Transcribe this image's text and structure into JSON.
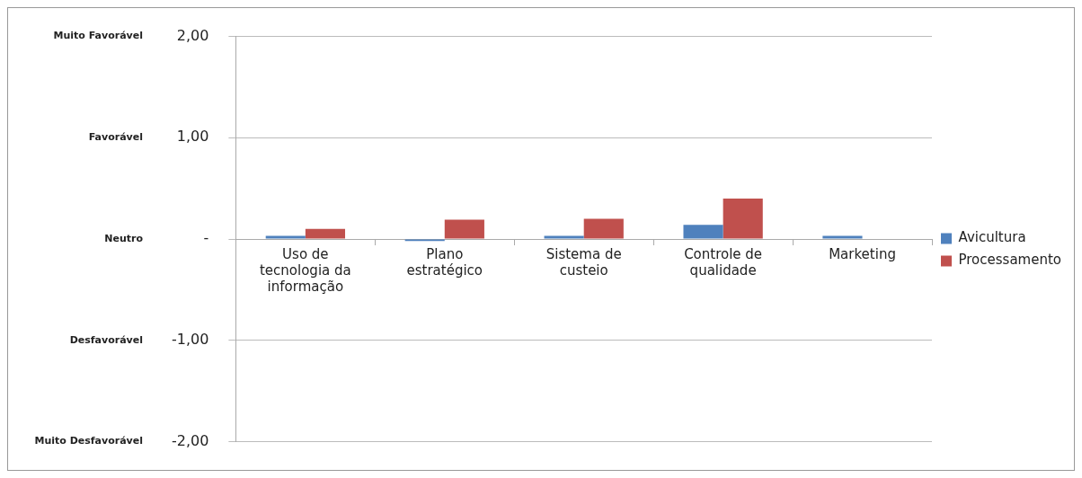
{
  "chart_data": {
    "type": "bar",
    "categories": [
      "Uso de tecnologia da informação",
      "Plano estratégico",
      "Sistema de custeio",
      "Controle de qualidade",
      "Marketing"
    ],
    "series": [
      {
        "name": "Avicultura",
        "color": "#4f81bd",
        "values": [
          0.03,
          -0.02,
          0.03,
          0.14,
          0.03
        ]
      },
      {
        "name": "Processamento",
        "color": "#c0504d",
        "values": [
          0.1,
          0.19,
          0.2,
          0.4,
          null
        ]
      }
    ],
    "ylim": [
      -2,
      2
    ],
    "yticks": [
      {
        "value": -2,
        "label": "-2,00"
      },
      {
        "value": -1,
        "label": "-1,00"
      },
      {
        "value": 0,
        "label": "-"
      },
      {
        "value": 1,
        "label": "1,00"
      },
      {
        "value": 2,
        "label": "2,00"
      }
    ],
    "annotations": [
      "Muito Favorável",
      "Favorável",
      "Neutro",
      "Desfavorável",
      "Muito Desfavorável"
    ],
    "grid": "y",
    "legend": "right"
  }
}
